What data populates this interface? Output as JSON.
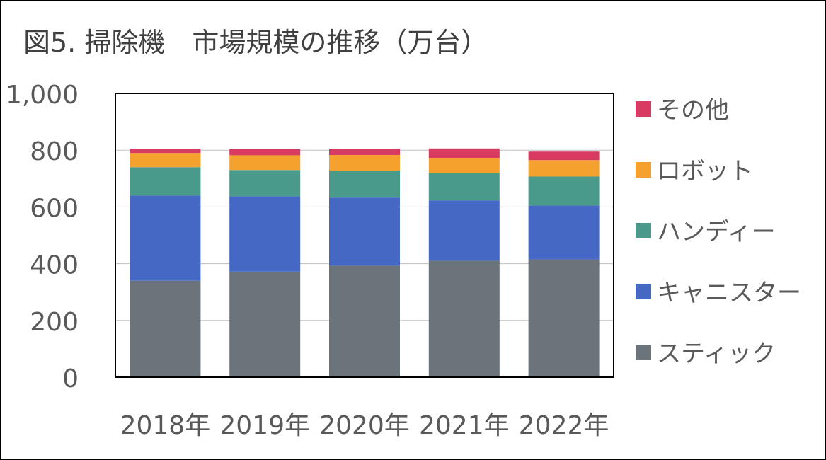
{
  "chart_data": {
    "type": "bar",
    "stacked": true,
    "title": "図5. 掃除機　市場規模の推移（万台）",
    "categories": [
      "2018年",
      "2019年",
      "2020年",
      "2021年",
      "2022年"
    ],
    "yticks": [
      "0",
      "200",
      "400",
      "600",
      "800",
      "1,000"
    ],
    "ylim": [
      0,
      1000
    ],
    "grid": true,
    "legend_position": "right",
    "series": [
      {
        "name": "スティック",
        "color": "#6b747a",
        "values": [
          340,
          372,
          393,
          410,
          415
        ]
      },
      {
        "name": "キャニスター",
        "color": "#4468c4",
        "values": [
          300,
          265,
          240,
          213,
          190
        ]
      },
      {
        "name": "ハンディー",
        "color": "#4a9a8c",
        "values": [
          100,
          93,
          95,
          97,
          102
        ]
      },
      {
        "name": "ロボット",
        "color": "#f5a12e",
        "values": [
          50,
          52,
          55,
          53,
          58
        ]
      },
      {
        "name": "その他",
        "color": "#d83a62",
        "values": [
          15,
          22,
          22,
          33,
          30
        ]
      }
    ]
  }
}
